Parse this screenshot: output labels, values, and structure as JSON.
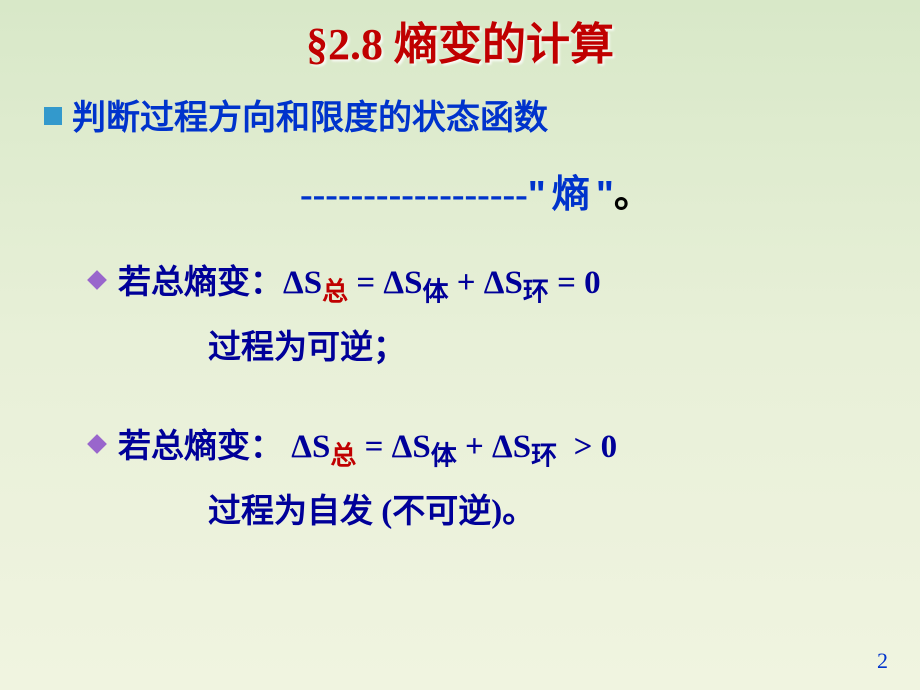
{
  "title": "§2.8  熵变的计算",
  "heading": {
    "text": "判断过程方向和限度的状态函数",
    "dashes": "------------------",
    "quote_open": "\"",
    "word": "熵",
    "quote_close": "\"",
    "period": "。"
  },
  "case1": {
    "label": "若总熵变：",
    "delta1": "Δ",
    "S1": "S",
    "sub1": "总",
    "eq1": "=",
    "delta2": "Δ",
    "S2": "S",
    "sub2": "体",
    "plus": "+",
    "delta3": "Δ",
    "S3": "S",
    "sub3": "环",
    "eq2": "=",
    "zero": "0",
    "result": "过程为可逆；"
  },
  "case2": {
    "label": "若总熵变：",
    "delta1": "Δ",
    "S1": "S",
    "sub1": "总",
    "eq1": "=",
    "delta2": "Δ",
    "S2": "S",
    "sub2": "体",
    "plus": "+",
    "delta3": "Δ",
    "S3": "S",
    "sub3": "环",
    "gt": ">",
    "zero": "0",
    "result": "过程为自发 (不可逆)。"
  },
  "page": "2",
  "colors": {
    "title": "#c00000",
    "blue": "#0033cc",
    "darkblue": "#000099",
    "bullet": "#3399cc",
    "diamond": "#9966cc"
  }
}
